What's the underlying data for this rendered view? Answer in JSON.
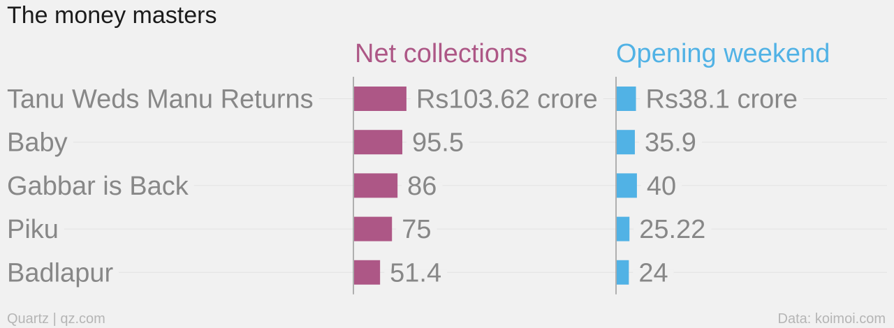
{
  "chart_data": {
    "type": "bar",
    "title": "The money masters",
    "categories": [
      "Tanu Weds Manu Returns",
      "Baby",
      "Gabbar is Back",
      "Piku",
      "Badlapur"
    ],
    "series": [
      {
        "name": "Net collections",
        "color": "#ad5786",
        "values": [
          103.62,
          95.5,
          86,
          75,
          51.4
        ],
        "labels": [
          "Rs103.62 crore",
          "95.5",
          "86",
          "75",
          "51.4"
        ]
      },
      {
        "name": "Opening weekend",
        "color": "#51b2e5",
        "values": [
          38.1,
          35.9,
          40,
          25.22,
          24
        ],
        "labels": [
          "Rs38.1 crore",
          "35.9",
          "40",
          "25.22",
          "24"
        ]
      }
    ],
    "source": "Data: koimoi.com",
    "credit": "Quartz | qz.com",
    "grid": true,
    "colors": {
      "background": "#f1f1f1",
      "text": "#878787",
      "title": "#1b1b1b",
      "gridline": "#e2e2e2",
      "axis": "#999999"
    }
  }
}
